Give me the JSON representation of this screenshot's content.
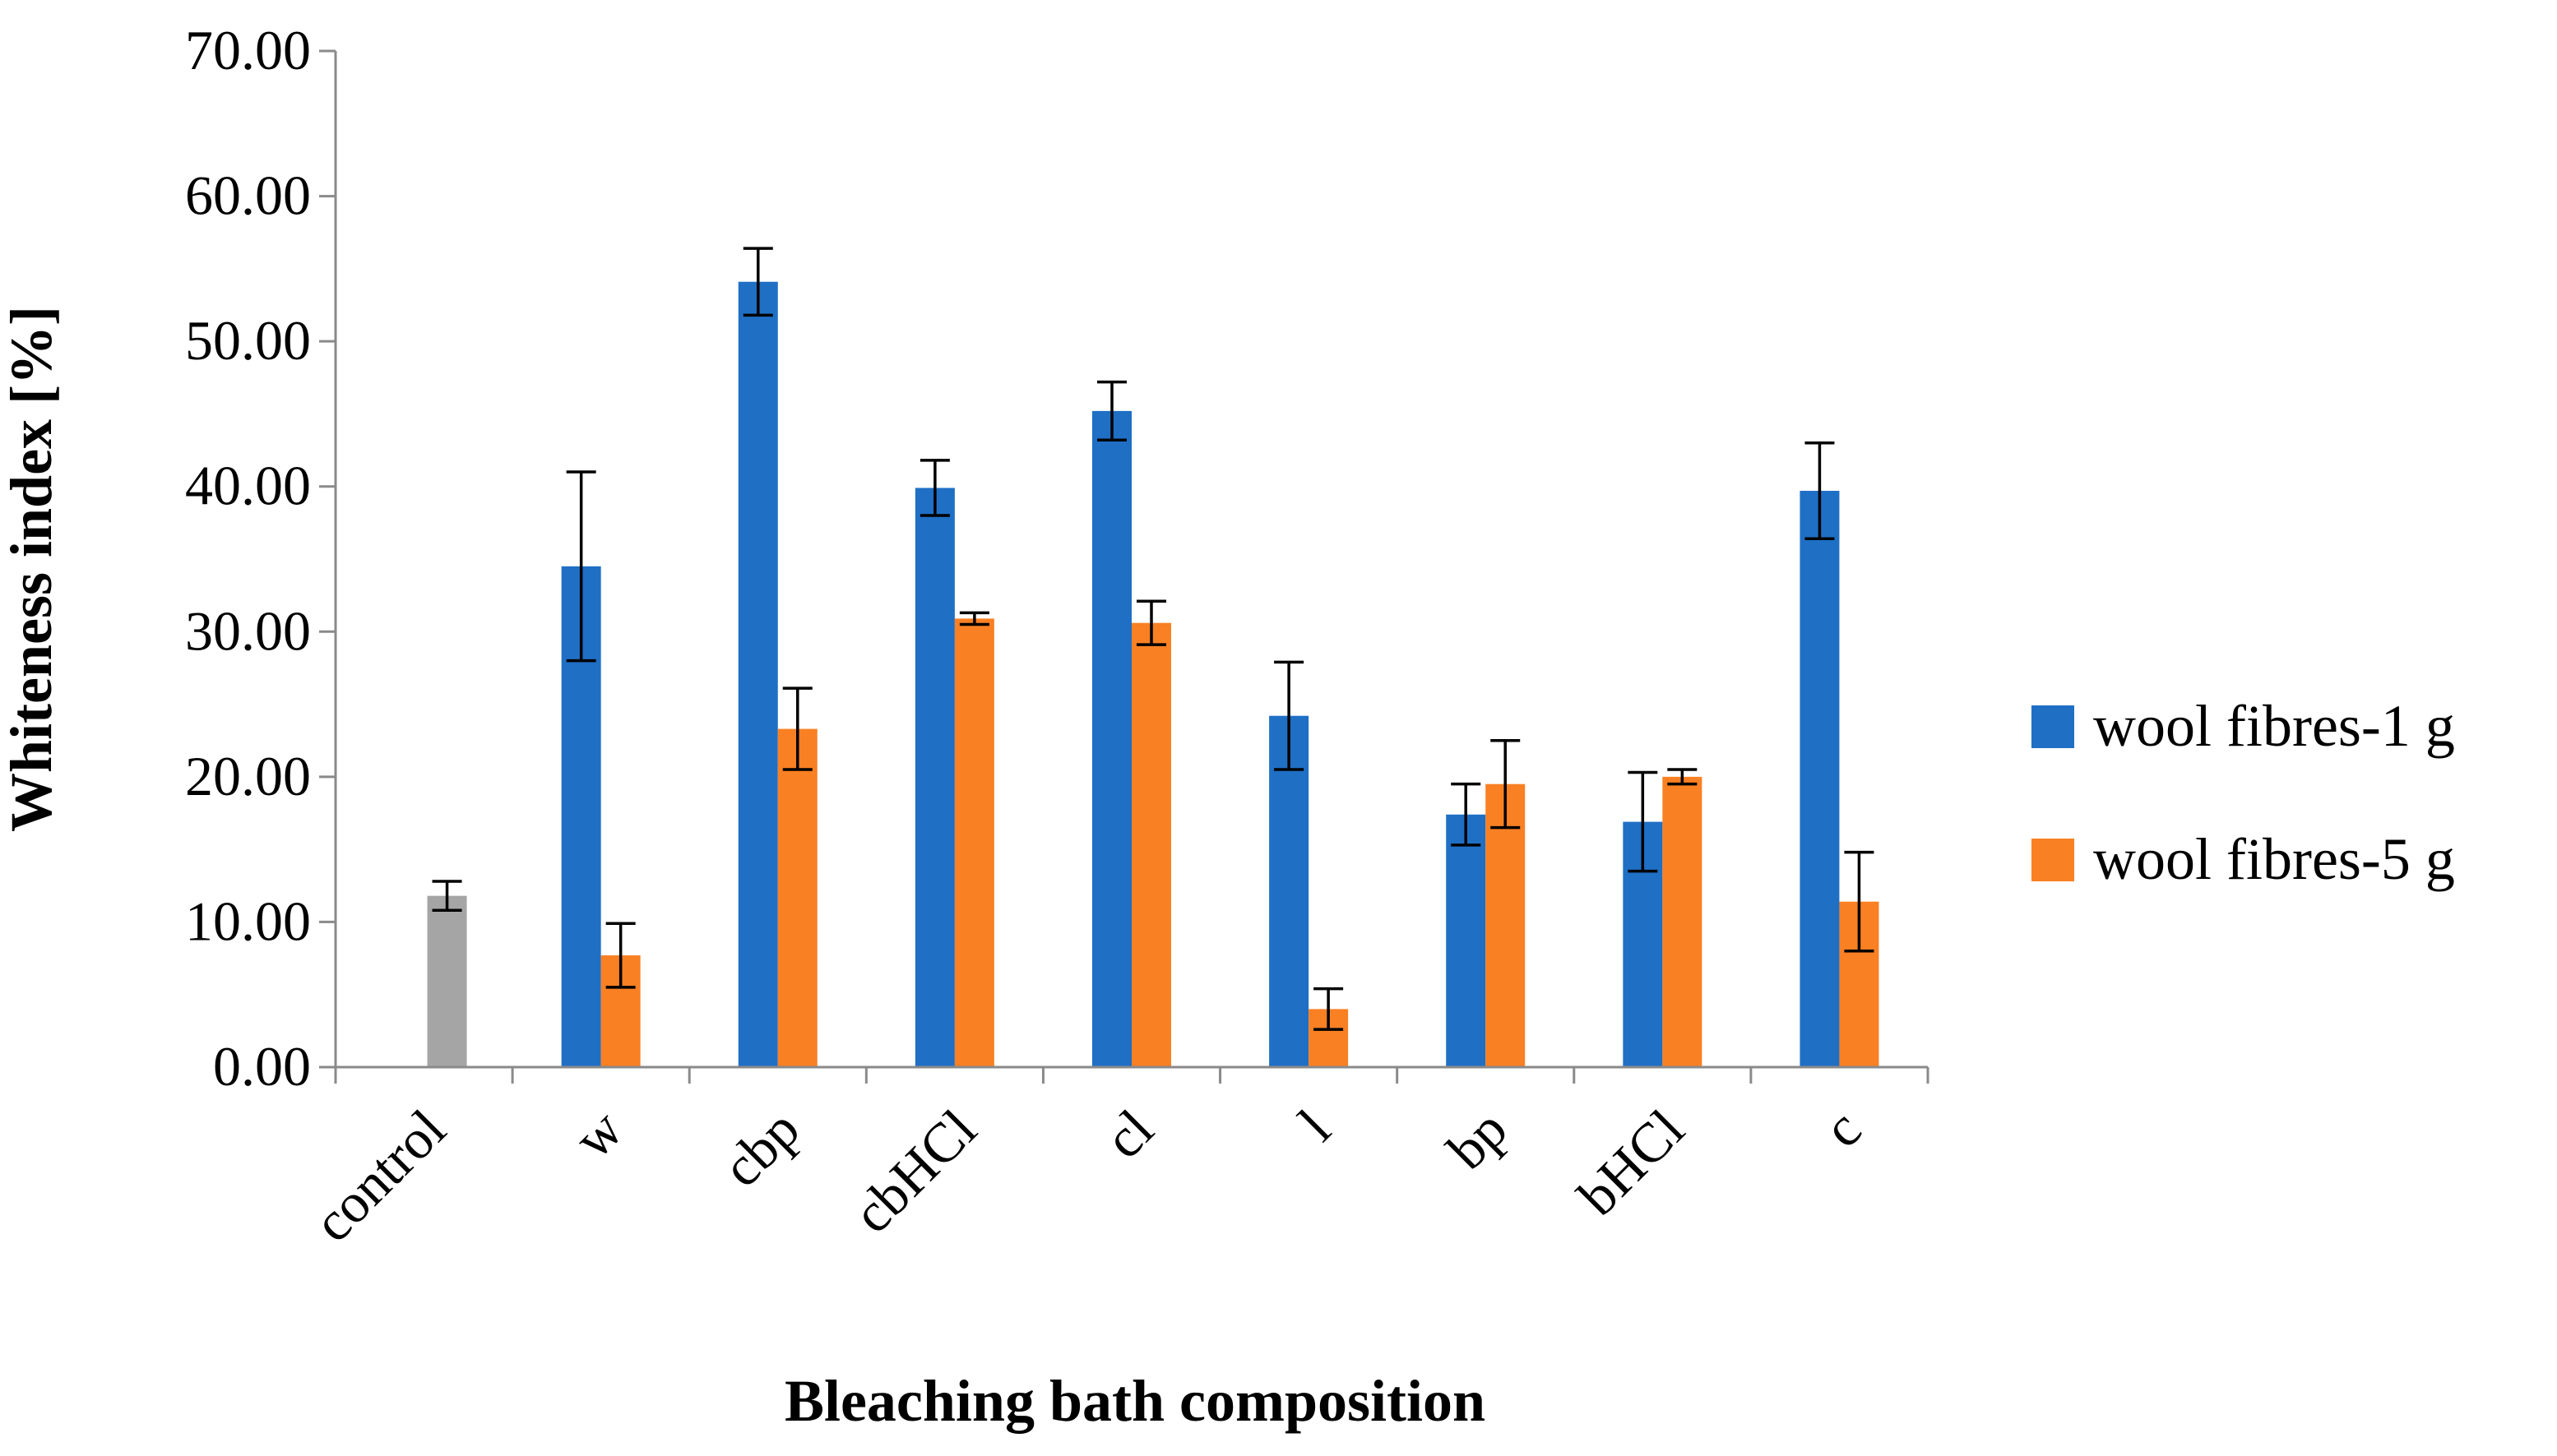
{
  "chart_data": {
    "type": "bar",
    "title": "",
    "xlabel": "Bleaching bath composition",
    "ylabel": "Whiteness index [%]",
    "ylim": [
      0,
      70
    ],
    "yticks": [
      "0.00",
      "10.00",
      "20.00",
      "30.00",
      "40.00",
      "50.00",
      "60.00",
      "70.00"
    ],
    "categories": [
      "control",
      "w",
      "cbp",
      "cbHCl",
      "cl",
      "l",
      "bp",
      "bHCl",
      "c"
    ],
    "legend_position": "right",
    "control": {
      "name": "control",
      "value": 11.8,
      "error": 1.0,
      "color": "#a5a5a5"
    },
    "series": [
      {
        "name": "wool fibres-1 g",
        "color": "#1f6fc5",
        "values": [
          null,
          34.5,
          54.1,
          39.9,
          45.2,
          24.2,
          17.4,
          16.9,
          39.7
        ],
        "errors": [
          null,
          6.5,
          2.3,
          1.9,
          2.0,
          3.7,
          2.1,
          3.4,
          3.3
        ]
      },
      {
        "name": "wool fibres-5 g",
        "color": "#f98023",
        "values": [
          null,
          7.7,
          23.3,
          30.9,
          30.6,
          4.0,
          19.5,
          20.0,
          11.4
        ],
        "errors": [
          null,
          2.2,
          2.8,
          0.4,
          1.5,
          1.4,
          3.0,
          0.5,
          3.4
        ]
      }
    ]
  }
}
